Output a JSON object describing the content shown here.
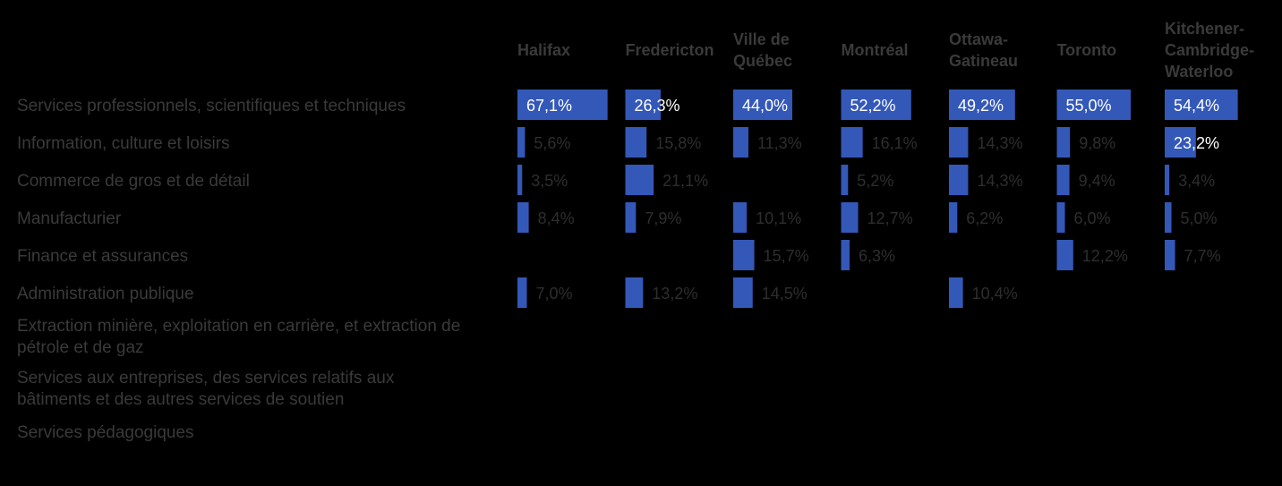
{
  "chart_data": {
    "type": "bar",
    "orientation": "horizontal-small-multiples",
    "xlim": [
      0,
      70
    ],
    "bar_color": "#3358b8",
    "categories": [
      "Services professionnels, scientifiques et techniques",
      "Information, culture et loisirs",
      "Commerce de gros et de détail",
      "Manufacturier",
      "Finance et assurances",
      "Administration publique",
      "Extraction minière, exploitation en carrière, et extraction de pétrole et de gaz",
      "Services aux entreprises, des services relatifs aux bâtiments et des autres services de soutien",
      "Services pédagogiques"
    ],
    "category_lines": [
      [
        "Services professionnels, scientifiques et techniques"
      ],
      [
        "Information, culture et loisirs"
      ],
      [
        "Commerce de gros et de détail"
      ],
      [
        "Manufacturier"
      ],
      [
        "Finance et assurances"
      ],
      [
        "Administration publique"
      ],
      [
        "Extraction minière, exploitation en carrière, et extraction de",
        "pétrole et de gaz"
      ],
      [
        "Services aux entreprises, des services relatifs aux",
        "bâtiments et des autres services de soutien"
      ],
      [
        "Services pédagogiques"
      ]
    ],
    "series": [
      {
        "name": "Halifax",
        "name_lines": [
          "Halifax"
        ],
        "values": [
          67.1,
          5.6,
          3.5,
          8.4,
          null,
          7.0,
          null,
          null,
          null
        ],
        "labels": [
          "67,1%",
          "5,6%",
          "3,5%",
          "8,4%",
          "",
          "7,0%",
          "",
          "",
          ""
        ]
      },
      {
        "name": "Fredericton",
        "name_lines": [
          "Fredericton"
        ],
        "values": [
          26.3,
          15.8,
          21.1,
          7.9,
          null,
          13.2,
          null,
          null,
          null
        ],
        "labels": [
          "26,3%",
          "15,8%",
          "21,1%",
          "7,9%",
          "",
          "13,2%",
          "",
          "",
          ""
        ]
      },
      {
        "name": "Ville de Québec",
        "name_lines": [
          "Ville de",
          "Québec"
        ],
        "values": [
          44.0,
          11.3,
          null,
          10.1,
          15.7,
          14.5,
          null,
          null,
          null
        ],
        "labels": [
          "44,0%",
          "11,3%",
          "",
          "10,1%",
          "15,7%",
          "14,5%",
          "",
          "",
          ""
        ]
      },
      {
        "name": "Montréal",
        "name_lines": [
          "Montréal"
        ],
        "values": [
          52.2,
          16.1,
          5.2,
          12.7,
          6.3,
          null,
          null,
          null,
          null
        ],
        "labels": [
          "52,2%",
          "16,1%",
          "5,2%",
          "12,7%",
          "6,3%",
          "",
          "",
          "",
          ""
        ]
      },
      {
        "name": "Ottawa-Gatineau",
        "name_lines": [
          "Ottawa-",
          "Gatineau"
        ],
        "values": [
          49.2,
          14.3,
          14.3,
          6.2,
          null,
          10.4,
          null,
          null,
          null
        ],
        "labels": [
          "49,2%",
          "14,3%",
          "14,3%",
          "6,2%",
          "",
          "10,4%",
          "",
          "",
          ""
        ]
      },
      {
        "name": "Toronto",
        "name_lines": [
          "Toronto"
        ],
        "values": [
          55.0,
          9.8,
          9.4,
          6.0,
          12.2,
          null,
          null,
          null,
          null
        ],
        "labels": [
          "55,0%",
          "9,8%",
          "9,4%",
          "6,0%",
          "12,2%",
          "",
          "",
          "",
          ""
        ]
      },
      {
        "name": "Kitchener-Cambridge-Waterloo",
        "name_lines": [
          "Kitchener-",
          "Cambridge-",
          "Waterloo"
        ],
        "values": [
          54.4,
          23.2,
          3.4,
          5.0,
          7.7,
          null,
          null,
          null,
          null
        ],
        "labels": [
          "54,4%",
          "23,2%",
          "3,4%",
          "5,0%",
          "7,7%",
          "",
          "",
          "",
          ""
        ]
      }
    ]
  }
}
